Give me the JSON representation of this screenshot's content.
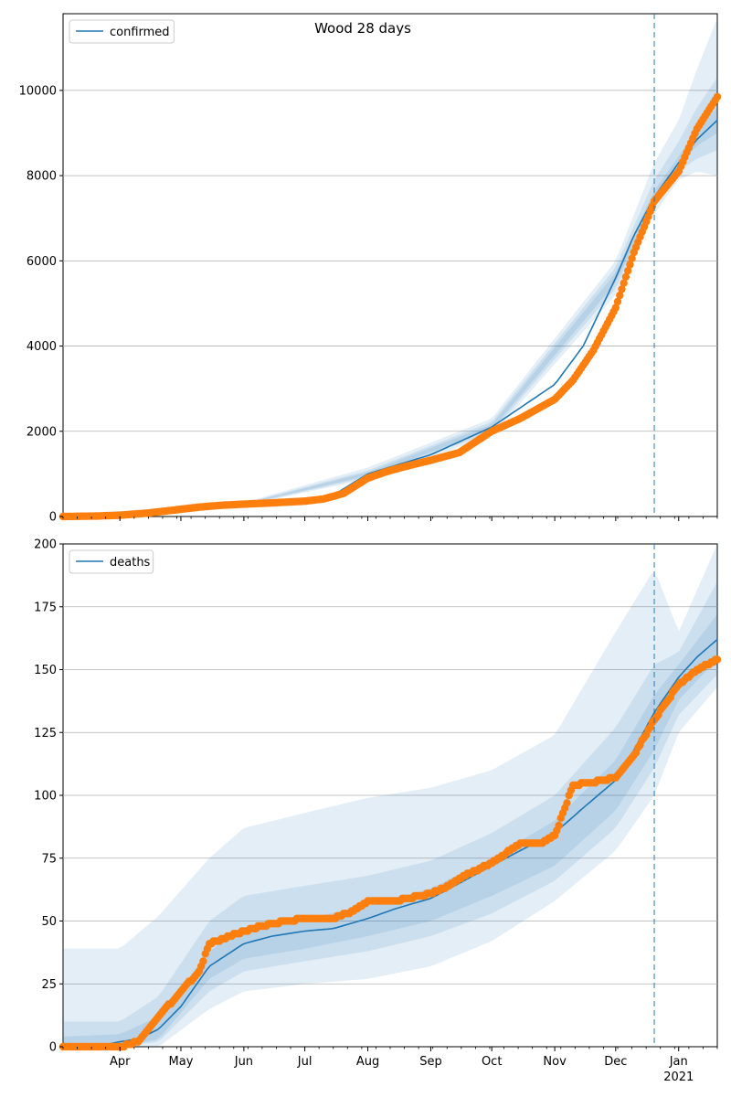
{
  "title": "Wood 28 days",
  "colors": {
    "model": "#1f77b4",
    "observed": "#ff7f0e",
    "band": "#1f77b4",
    "grid": "#b0b0b0",
    "forecast_line": "#1f77b4"
  },
  "chart_data": [
    {
      "type": "line",
      "name": "confirmed-panel",
      "legend": "confirmed",
      "legend_position": "top-left",
      "grid": "y-major",
      "title": "Wood 28 days",
      "x_range": [
        "2020-03-04",
        "2021-01-20"
      ],
      "ylim": [
        0,
        11800
      ],
      "y_ticks": [
        0,
        2000,
        4000,
        6000,
        8000,
        10000
      ],
      "forecast_start": "2020-12-20",
      "model": {
        "x": [
          "2020-03-04",
          "2020-04-01",
          "2020-05-01",
          "2020-06-01",
          "2020-07-01",
          "2020-07-15",
          "2020-08-01",
          "2020-09-01",
          "2020-10-01",
          "2020-11-01",
          "2020-11-15",
          "2020-12-01",
          "2020-12-10",
          "2020-12-20",
          "2021-01-01",
          "2021-01-10",
          "2021-01-20"
        ],
        "y": [
          0,
          20,
          150,
          290,
          380,
          500,
          1000,
          1450,
          2100,
          3100,
          4000,
          5600,
          6600,
          7500,
          8300,
          8850,
          9300
        ]
      },
      "bands": [
        {
          "x": [
            "2020-03-04",
            "2020-06-01",
            "2020-08-01",
            "2020-10-01",
            "2020-12-01",
            "2020-12-20",
            "2021-01-01",
            "2021-01-10",
            "2021-01-20"
          ],
          "lower": [
            0,
            260,
            880,
            1900,
            5200,
            7100,
            7900,
            8100,
            8000
          ],
          "upper": [
            40,
            330,
            1150,
            2300,
            6000,
            8300,
            9300,
            10500,
            11700
          ]
        },
        {
          "x": [
            "2020-03-04",
            "2020-06-01",
            "2020-08-01",
            "2020-10-01",
            "2020-12-01",
            "2020-12-20",
            "2021-01-01",
            "2021-01-10",
            "2021-01-20"
          ],
          "lower": [
            0,
            270,
            920,
            1980,
            5350,
            7300,
            8100,
            8400,
            8600
          ],
          "upper": [
            30,
            310,
            1080,
            2220,
            5850,
            7900,
            8800,
            9600,
            10300
          ]
        },
        {
          "x": [
            "2020-03-04",
            "2020-06-01",
            "2020-08-01",
            "2020-10-01",
            "2020-12-01",
            "2020-12-20",
            "2021-01-01",
            "2021-01-10",
            "2021-01-20"
          ],
          "lower": [
            0,
            280,
            960,
            2040,
            5480,
            7400,
            8250,
            8700,
            9000
          ],
          "upper": [
            20,
            300,
            1040,
            2160,
            5720,
            7650,
            8450,
            9100,
            9600
          ]
        }
      ],
      "observed": {
        "x": [
          "2020-03-04",
          "2020-03-20",
          "2020-04-01",
          "2020-04-15",
          "2020-05-01",
          "2020-05-10",
          "2020-05-20",
          "2020-06-01",
          "2020-06-15",
          "2020-07-01",
          "2020-07-10",
          "2020-07-20",
          "2020-08-01",
          "2020-08-10",
          "2020-08-20",
          "2020-09-01",
          "2020-09-15",
          "2020-10-01",
          "2020-10-15",
          "2020-11-01",
          "2020-11-10",
          "2020-11-20",
          "2020-12-01",
          "2020-12-10",
          "2020-12-20",
          "2021-01-01",
          "2021-01-10",
          "2021-01-20"
        ],
        "y": [
          0,
          10,
          30,
          80,
          170,
          220,
          260,
          290,
          320,
          360,
          410,
          540,
          900,
          1050,
          1180,
          1320,
          1500,
          2000,
          2300,
          2750,
          3200,
          3900,
          4900,
          6200,
          7400,
          8100,
          9100,
          9850
        ]
      }
    },
    {
      "type": "line",
      "name": "deaths-panel",
      "legend": "deaths",
      "legend_position": "top-left",
      "grid": "y-major",
      "x_range": [
        "2020-03-04",
        "2021-01-20"
      ],
      "ylim": [
        0,
        200
      ],
      "y_ticks": [
        0,
        25,
        50,
        75,
        100,
        125,
        150,
        175,
        200
      ],
      "x_ticks": [
        "Apr",
        "May",
        "Jun",
        "Jul",
        "Aug",
        "Sep",
        "Oct",
        "Nov",
        "Dec",
        "Jan"
      ],
      "x_tick_dates": [
        "2020-04-01",
        "2020-05-01",
        "2020-06-01",
        "2020-07-01",
        "2020-08-01",
        "2020-09-01",
        "2020-10-01",
        "2020-11-01",
        "2020-12-01",
        "2021-01-01"
      ],
      "x_year_label": "2021",
      "forecast_start": "2020-12-20",
      "model": {
        "x": [
          "2020-03-04",
          "2020-03-20",
          "2020-04-01",
          "2020-04-10",
          "2020-04-20",
          "2020-05-01",
          "2020-05-15",
          "2020-06-01",
          "2020-06-15",
          "2020-07-01",
          "2020-07-15",
          "2020-08-01",
          "2020-08-15",
          "2020-09-01",
          "2020-09-15",
          "2020-10-01",
          "2020-10-15",
          "2020-11-01",
          "2020-11-15",
          "2020-12-01",
          "2020-12-10",
          "2020-12-20",
          "2021-01-01",
          "2021-01-10",
          "2021-01-20"
        ],
        "y": [
          0,
          0,
          2,
          3,
          7,
          16,
          32,
          41,
          44,
          46,
          47,
          51,
          55,
          59,
          65,
          72,
          78,
          85,
          95,
          106,
          118,
          133,
          147,
          155,
          162
        ]
      },
      "bands": [
        {
          "x": [
            "2020-03-04",
            "2020-04-01",
            "2020-04-20",
            "2020-05-15",
            "2020-06-01",
            "2020-07-01",
            "2020-08-01",
            "2020-09-01",
            "2020-10-01",
            "2020-11-01",
            "2020-12-01",
            "2020-12-20",
            "2021-01-01",
            "2021-01-20"
          ],
          "lower": [
            0,
            0,
            0,
            15,
            22,
            25,
            27,
            32,
            42,
            58,
            78,
            100,
            125,
            143
          ],
          "upper": [
            39,
            39,
            52,
            75,
            87,
            93,
            99,
            103,
            110,
            124,
            165,
            190,
            165,
            200
          ]
        },
        {
          "x": [
            "2020-03-04",
            "2020-04-01",
            "2020-04-20",
            "2020-05-15",
            "2020-06-01",
            "2020-07-01",
            "2020-08-01",
            "2020-09-01",
            "2020-10-01",
            "2020-11-01",
            "2020-12-01",
            "2020-12-20",
            "2021-01-01",
            "2021-01-20"
          ],
          "lower": [
            0,
            0,
            2,
            22,
            30,
            34,
            38,
            44,
            53,
            66,
            87,
            111,
            132,
            148
          ],
          "upper": [
            10,
            10,
            20,
            50,
            60,
            64,
            68,
            74,
            85,
            100,
            127,
            152,
            157,
            185
          ]
        },
        {
          "x": [
            "2020-03-04",
            "2020-04-01",
            "2020-04-20",
            "2020-05-15",
            "2020-06-01",
            "2020-07-01",
            "2020-08-01",
            "2020-09-01",
            "2020-10-01",
            "2020-11-01",
            "2020-12-01",
            "2020-12-20",
            "2021-01-01",
            "2021-01-20"
          ],
          "lower": [
            0,
            0,
            3,
            27,
            35,
            39,
            44,
            50,
            60,
            72,
            94,
            118,
            138,
            154
          ],
          "upper": [
            4,
            5,
            12,
            38,
            47,
            51,
            56,
            63,
            75,
            90,
            114,
            140,
            152,
            172
          ]
        }
      ],
      "observed": {
        "x": [
          "2020-03-04",
          "2020-04-01",
          "2020-04-10",
          "2020-04-20",
          "2020-05-01",
          "2020-05-10",
          "2020-05-15",
          "2020-06-01",
          "2020-06-15",
          "2020-07-01",
          "2020-07-15",
          "2020-07-25",
          "2020-08-01",
          "2020-08-15",
          "2020-09-01",
          "2020-09-10",
          "2020-09-20",
          "2020-10-01",
          "2020-10-15",
          "2020-10-25",
          "2020-11-01",
          "2020-11-10",
          "2020-11-25",
          "2020-12-01",
          "2020-12-10",
          "2020-12-20",
          "2021-01-01",
          "2021-01-10",
          "2021-01-20"
        ],
        "y": [
          0,
          0,
          2,
          12,
          22,
          30,
          41,
          46,
          49,
          51,
          51,
          54,
          58,
          58,
          61,
          64,
          69,
          73,
          81,
          81,
          84,
          104,
          106,
          107,
          116,
          130,
          144,
          150,
          154
        ]
      }
    }
  ]
}
